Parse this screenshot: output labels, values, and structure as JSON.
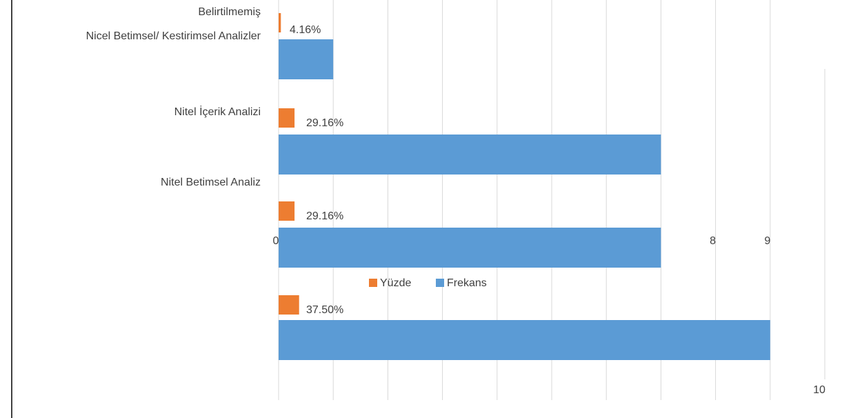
{
  "chart_data": {
    "type": "hbar",
    "categories": [
      "Belirtilmemiş",
      "Nicel Betimsel/ Kestirimsel Analizler",
      "Nitel İçerik Analizi",
      "Nitel Betimsel Analiz"
    ],
    "series": [
      {
        "name": "Yüzde",
        "color": "#ed7d31",
        "values": [
          0.0416,
          0.2916,
          0.2916,
          0.375
        ],
        "value_labels": [
          "4.16%",
          "29.16%",
          "29.16%",
          "37.50%"
        ]
      },
      {
        "name": "Frekans",
        "color": "#5b9bd5",
        "values": [
          1,
          7,
          7,
          9
        ]
      }
    ],
    "xlim": [
      0,
      10
    ],
    "xticks": [
      0,
      1,
      2,
      3,
      4,
      5,
      6,
      7,
      8,
      9,
      10
    ],
    "grid": true
  }
}
